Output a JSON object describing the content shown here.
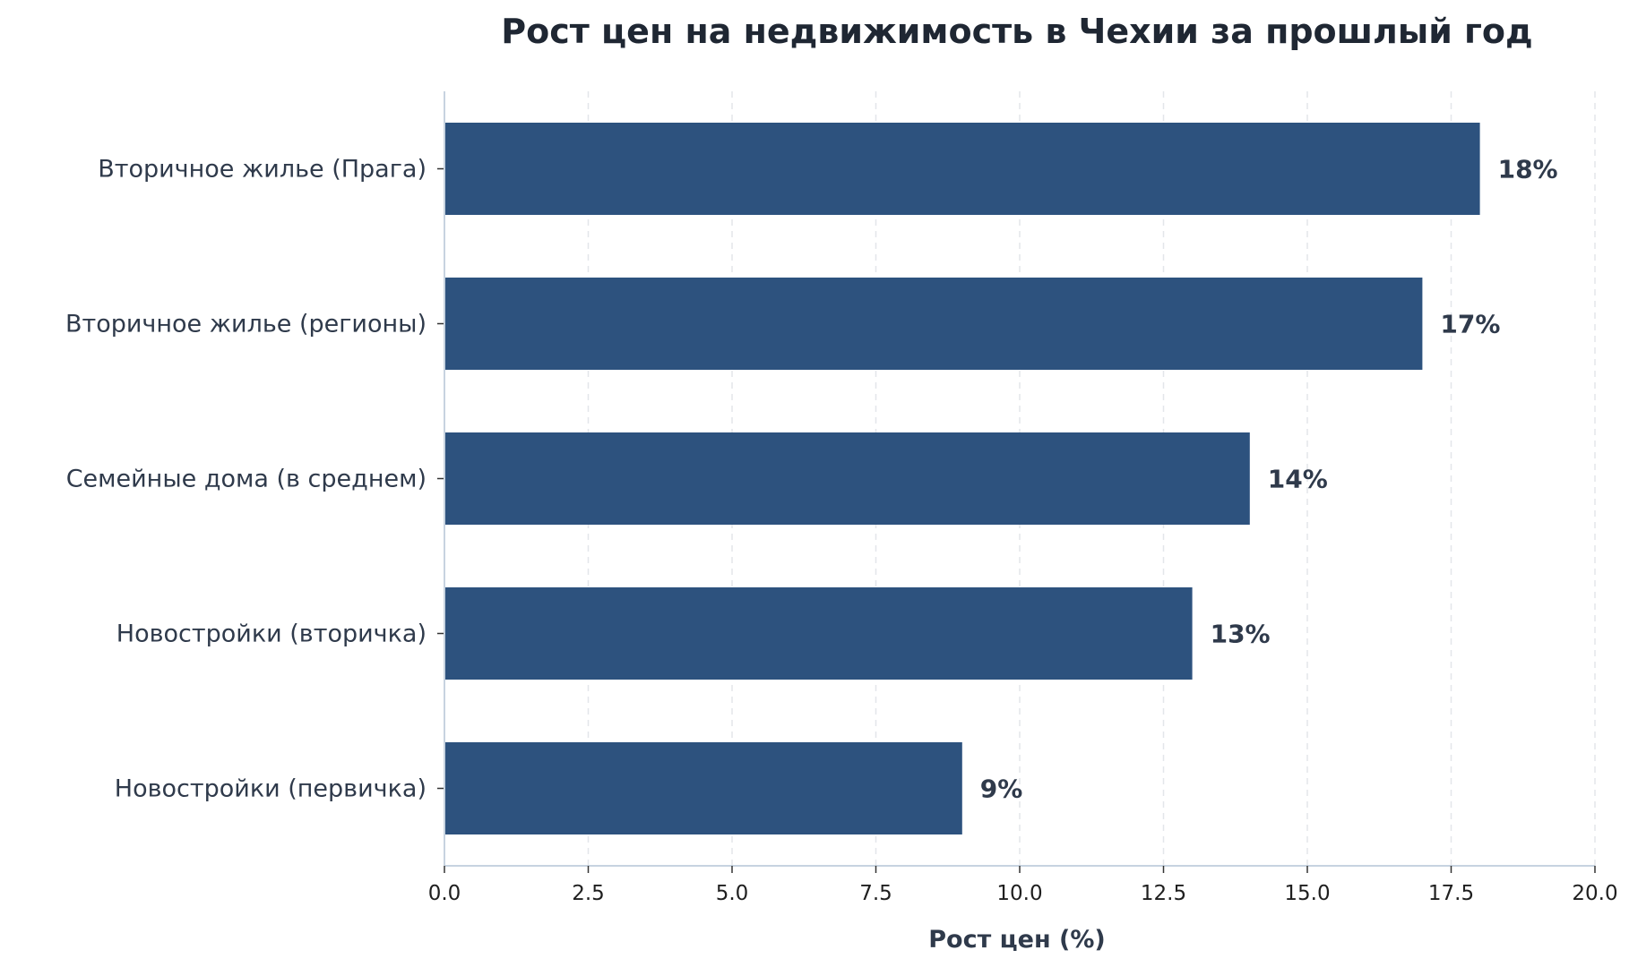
{
  "colors": {
    "bar": "#2d527e",
    "text": "#2f3a4b",
    "title": "#1f2733",
    "grid": "#e3e6ea",
    "axis": "#c7d3e0"
  },
  "chart_data": {
    "type": "bar",
    "orientation": "horizontal",
    "title": "Рост цен на недвижимость в Чехии за прошлый год",
    "xlabel": "Рост цен (%)",
    "ylabel": "",
    "categories": [
      "Вторичное жилье (Прага)",
      "Вторичное жилье (регионы)",
      "Семейные дома (в среднем)",
      "Новостройки (вторичка)",
      "Новостройки (первичка)"
    ],
    "values": [
      18,
      17,
      14,
      13,
      9
    ],
    "data_labels": [
      "18%",
      "17%",
      "14%",
      "13%",
      "9%"
    ],
    "xlim": [
      0,
      20
    ],
    "xticks": [
      0,
      2.5,
      5,
      7.5,
      10,
      12.5,
      15,
      17.5,
      20
    ],
    "xtick_labels": [
      "0.0",
      "2.5",
      "5.0",
      "7.5",
      "10.0",
      "12.5",
      "15.0",
      "17.5",
      "20.0"
    ],
    "grid": "x-dashed",
    "legend": "none"
  }
}
